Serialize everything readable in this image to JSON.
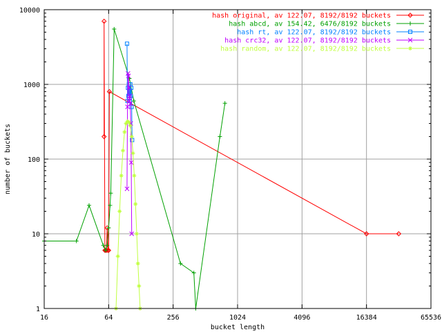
{
  "chart_data": {
    "type": "line",
    "xlabel": "bucket length",
    "ylabel": "number of buckets",
    "xscale": "log2",
    "yscale": "log10",
    "xlim": [
      16,
      65536
    ],
    "ylim": [
      1,
      10000
    ],
    "xticks": [
      16,
      64,
      256,
      1024,
      4096,
      16384,
      65536
    ],
    "yticks": [
      1,
      10,
      100,
      1000,
      10000
    ],
    "xtick_labels": [
      "16",
      "64",
      "256",
      "1024",
      "4096",
      "16384",
      "65536"
    ],
    "ytick_labels": [
      "1",
      "10",
      "100",
      "1000",
      "10000"
    ],
    "grid": true,
    "legend_position": "top-right",
    "series": [
      {
        "name": "hash original, av 122.07, 8192/8192 buckets",
        "color": "#ff0000",
        "marker": "diamond",
        "points": [
          [
            58,
            200
          ],
          [
            58,
            7000
          ],
          [
            59,
            6
          ],
          [
            60,
            6
          ],
          [
            61,
            6
          ],
          [
            62,
            12
          ],
          [
            63,
            6
          ],
          [
            64,
            6
          ],
          [
            65,
            800
          ],
          [
            16384,
            10
          ],
          [
            32768,
            10
          ]
        ]
      },
      {
        "name": "hash abcd, av 154.42, 6476/8192 buckets",
        "color": "#00a000",
        "marker": "plus",
        "points": [
          [
            16,
            8
          ],
          [
            32,
            8
          ],
          [
            42,
            24
          ],
          [
            57,
            7
          ],
          [
            60,
            6
          ],
          [
            62,
            7
          ],
          [
            64,
            12
          ],
          [
            66,
            24
          ],
          [
            67,
            35
          ],
          [
            72,
            5500
          ],
          [
            100,
            1200
          ],
          [
            110,
            600
          ],
          [
            300,
            4
          ],
          [
            400,
            3
          ],
          [
            416,
            1
          ],
          [
            700,
            200
          ],
          [
            780,
            560
          ]
        ]
      },
      {
        "name": "hash rt, av 122.07, 8192/8192 buckets",
        "color": "#0080ff",
        "marker": "square",
        "points": [
          [
            95,
            3500
          ],
          [
            96,
            600
          ],
          [
            97,
            900
          ],
          [
            98,
            700
          ],
          [
            99,
            1000
          ],
          [
            100,
            800
          ],
          [
            101,
            600
          ],
          [
            102,
            1000
          ],
          [
            103,
            700
          ],
          [
            104,
            900
          ],
          [
            105,
            500
          ],
          [
            106,
            180
          ]
        ]
      },
      {
        "name": "hash crc32, av 122.07, 8192/8192 buckets",
        "color": "#c000ff",
        "marker": "x",
        "points": [
          [
            95,
            40
          ],
          [
            96,
            500
          ],
          [
            97,
            1400
          ],
          [
            98,
            1300
          ],
          [
            99,
            900
          ],
          [
            100,
            600
          ],
          [
            101,
            700
          ],
          [
            102,
            550
          ],
          [
            103,
            300
          ],
          [
            104,
            90
          ],
          [
            105,
            10
          ]
        ]
      },
      {
        "name": "hash random, av 122.07, 8192/8192 buckets",
        "color": "#c0ff40",
        "marker": "star",
        "points": [
          [
            75,
            1
          ],
          [
            78,
            5
          ],
          [
            81,
            20
          ],
          [
            84,
            60
          ],
          [
            87,
            130
          ],
          [
            90,
            230
          ],
          [
            93,
            300
          ],
          [
            96,
            320
          ],
          [
            99,
            310
          ],
          [
            102,
            280
          ],
          [
            105,
            200
          ],
          [
            108,
            120
          ],
          [
            111,
            60
          ],
          [
            114,
            25
          ],
          [
            117,
            10
          ],
          [
            120,
            4
          ],
          [
            123,
            2
          ],
          [
            126,
            1
          ]
        ]
      }
    ]
  }
}
